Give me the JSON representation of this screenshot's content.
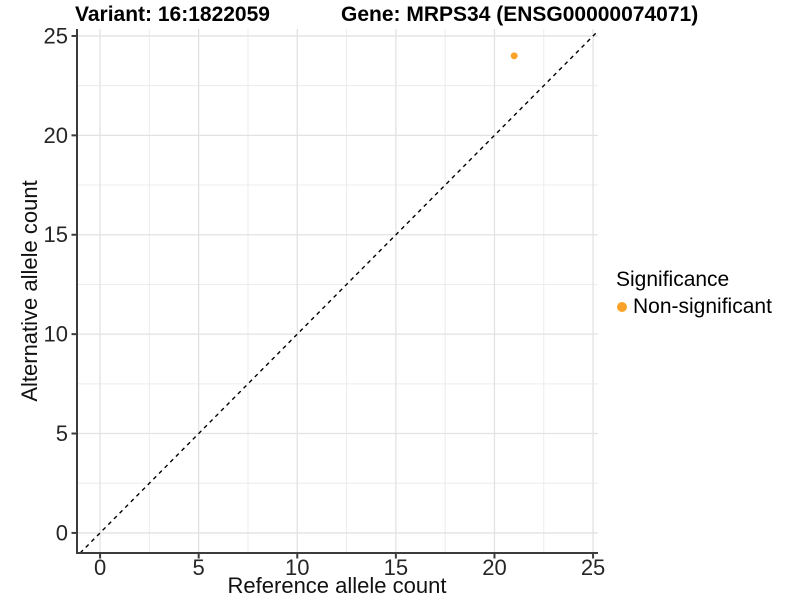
{
  "titles": {
    "variant": "Variant: 16:1822059",
    "gene": "Gene: MRPS34 (ENSG00000074071)"
  },
  "axes": {
    "x_label": "Reference allele count",
    "y_label": "Alternative allele count"
  },
  "legend": {
    "title": "Significance",
    "items": [
      {
        "label": "Non-significant",
        "color": "#FAA328"
      }
    ]
  },
  "chart_data": {
    "type": "scatter",
    "title": "Variant: 16:1822059 | Gene: MRPS34 (ENSG00000074071)",
    "xlabel": "Reference allele count",
    "ylabel": "Alternative allele count",
    "xlim": [
      -1.17,
      25.25
    ],
    "ylim": [
      -1.01,
      25.35
    ],
    "x_ticks": [
      0,
      5,
      10,
      15,
      20,
      25
    ],
    "y_ticks": [
      0,
      5,
      10,
      15,
      20,
      25
    ],
    "x_minor_ticks": [
      2.5,
      7.5,
      12.5,
      17.5,
      22.5
    ],
    "y_minor_ticks": [
      2.5,
      7.5,
      12.5,
      17.5,
      22.5
    ],
    "grid": "major+minor",
    "legend_position": "right",
    "series": [
      {
        "name": "Non-significant",
        "color": "#FAA328",
        "points": [
          {
            "x": 21,
            "y": 24
          }
        ]
      }
    ],
    "reference_line": {
      "kind": "abline",
      "slope": 1,
      "intercept": 0,
      "style": "dashed",
      "color": "#000000"
    },
    "style": {
      "grid_major_color": "#E2E2E2",
      "grid_minor_color": "#ECECEC",
      "axis_color": "#3C3C3C",
      "point_radius": 3.5
    }
  }
}
